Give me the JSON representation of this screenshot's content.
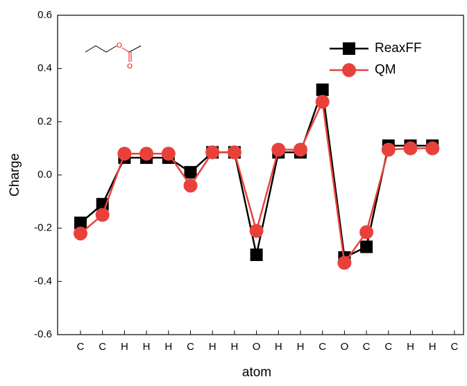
{
  "chart_data": {
    "type": "line",
    "x_label": "atom",
    "y_label": "Charge",
    "categories": [
      "C",
      "C",
      "H",
      "H",
      "H",
      "C",
      "H",
      "H",
      "O",
      "H",
      "H",
      "C",
      "O",
      "C",
      "C",
      "H",
      "H",
      "C"
    ],
    "series": [
      {
        "name": "ReaxFF",
        "color": "#000000",
        "marker": "square",
        "values": [
          -0.18,
          -0.11,
          0.065,
          0.065,
          0.065,
          0.01,
          0.085,
          0.085,
          -0.3,
          0.085,
          0.085,
          0.32,
          -0.31,
          -0.27,
          0.11,
          0.11,
          0.11,
          null
        ]
      },
      {
        "name": "QM",
        "color": "#e8413c",
        "marker": "circle",
        "values": [
          -0.22,
          -0.15,
          0.08,
          0.08,
          0.08,
          -0.04,
          0.085,
          0.085,
          -0.21,
          0.095,
          0.095,
          0.275,
          -0.33,
          -0.215,
          0.095,
          0.1,
          0.1,
          null
        ]
      }
    ],
    "ylim": [
      -0.6,
      0.6
    ],
    "yticks": [
      -0.6,
      -0.4,
      -0.2,
      {
        "value": 0,
        "label": "0.0"
      },
      0.2,
      0.4,
      0.6
    ],
    "legend": "upper right",
    "inset": {
      "atoms": [
        "O",
        "O"
      ]
    }
  }
}
